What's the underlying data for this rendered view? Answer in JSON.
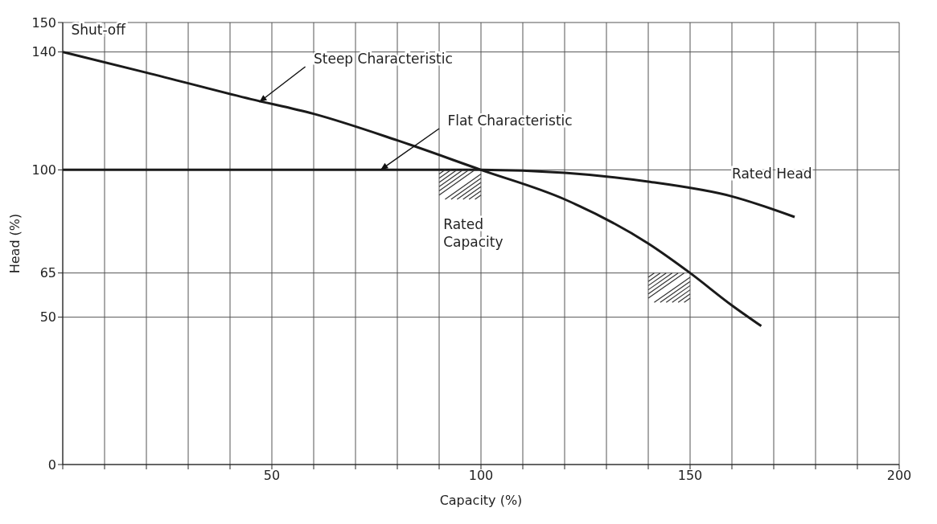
{
  "chart_data": {
    "type": "line",
    "xlabel": "Capacity (%)",
    "ylabel": "Head (%)",
    "xlim": [
      0,
      200
    ],
    "ylim": [
      0,
      150
    ],
    "xticks": [
      {
        "value": 0,
        "label": null
      },
      {
        "value": 10,
        "label": null
      },
      {
        "value": 20,
        "label": null
      },
      {
        "value": 30,
        "label": null
      },
      {
        "value": 40,
        "label": null
      },
      50,
      {
        "value": 60,
        "label": null
      },
      {
        "value": 70,
        "label": null
      },
      {
        "value": 80,
        "label": null
      },
      {
        "value": 90,
        "label": null
      },
      100,
      {
        "value": 110,
        "label": null
      },
      {
        "value": 120,
        "label": null
      },
      {
        "value": 130,
        "label": null
      },
      {
        "value": 140,
        "label": null
      },
      150,
      {
        "value": 160,
        "label": null
      },
      {
        "value": 170,
        "label": null
      },
      {
        "value": 180,
        "label": null
      },
      {
        "value": 190,
        "label": null
      },
      200
    ],
    "yticks": [
      0,
      50,
      65,
      100,
      140,
      150
    ],
    "grid": true,
    "marker": "none",
    "line_style": "solid",
    "series": [
      {
        "color": "#1a1a1a",
        "x": [
          0,
          20,
          45,
          60,
          80,
          100,
          120,
          140,
          150,
          160,
          167
        ],
        "values": [
          140,
          133,
          124,
          119,
          110,
          100,
          90,
          75,
          65,
          54,
          47
        ]
      },
      {
        "color": "#1a1a1a",
        "x": [
          0,
          50,
          100,
          120,
          140,
          160,
          175
        ],
        "values": [
          100,
          100,
          100,
          99,
          96,
          91,
          84
        ]
      }
    ],
    "annotations": [
      "Shut-off",
      {
        "text": "Steep Characteristic",
        "x": 47,
        "y": 123
      },
      {
        "text": "Flat Characteristic",
        "x": 76,
        "y": 100
      },
      "Rated Head",
      {
        "text": "Rated\nCapacity",
        "x": 100,
        "y": 100
      }
    ]
  }
}
